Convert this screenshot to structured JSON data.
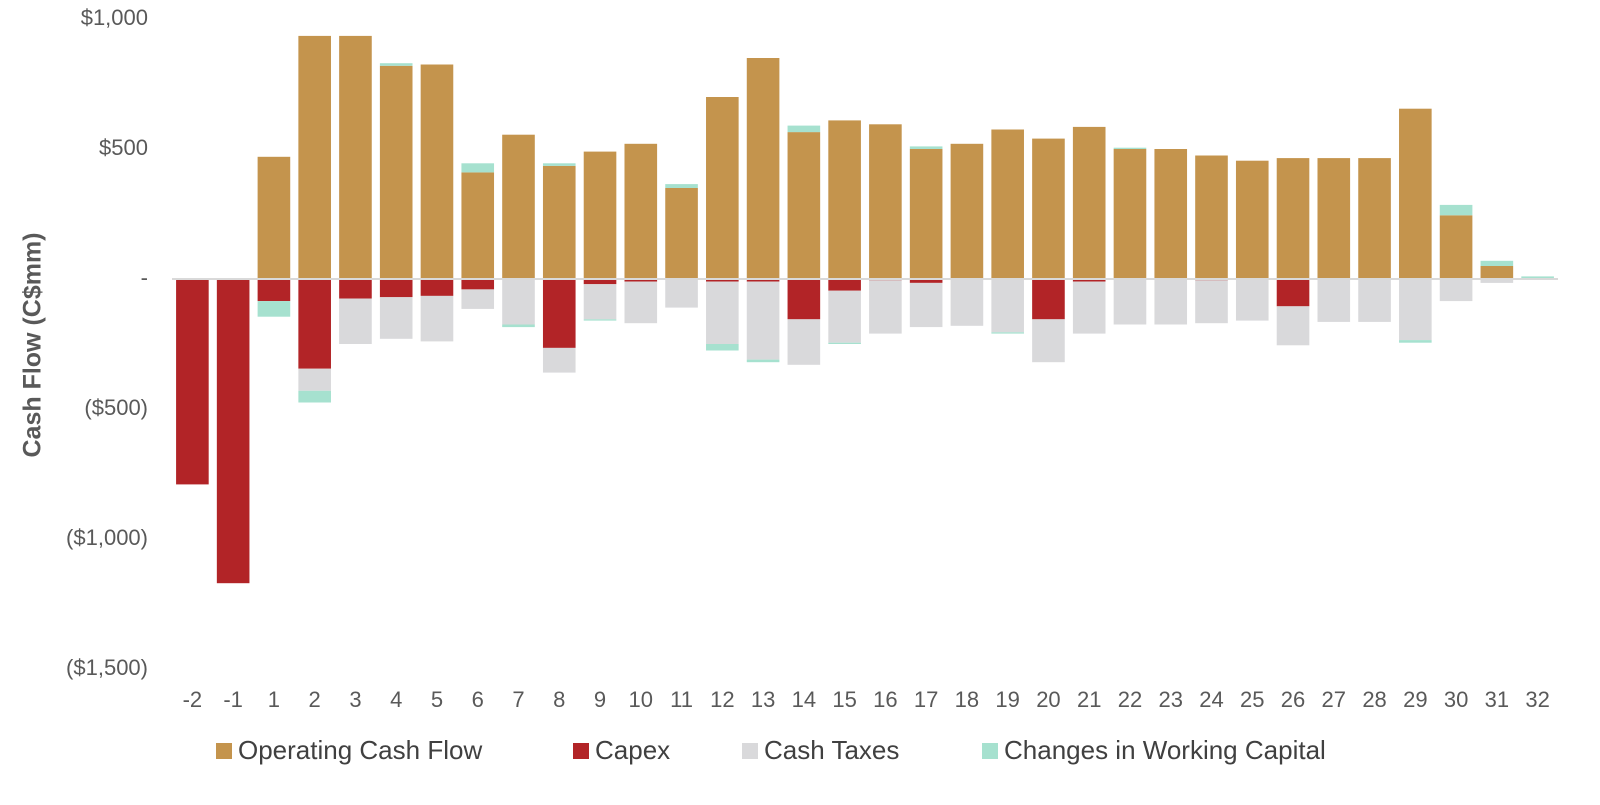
{
  "chart_data": {
    "type": "bar",
    "stacked": true,
    "title": "",
    "xlabel": "",
    "ylabel": "Cash Flow (C$mm)",
    "ylim": [
      -1500,
      1000
    ],
    "y_ticks": [
      {
        "value": 1000,
        "label": "$1,000"
      },
      {
        "value": 500,
        "label": "$500"
      },
      {
        "value": 0,
        "label": "-"
      },
      {
        "value": -500,
        "label": "($500)"
      },
      {
        "value": -1000,
        "label": "($1,000)"
      },
      {
        "value": -1500,
        "label": "($1,500)"
      }
    ],
    "categories": [
      "-2",
      "-1",
      "1",
      "2",
      "3",
      "4",
      "5",
      "6",
      "7",
      "8",
      "9",
      "10",
      "11",
      "12",
      "13",
      "14",
      "15",
      "16",
      "17",
      "18",
      "19",
      "20",
      "21",
      "22",
      "23",
      "24",
      "25",
      "26",
      "27",
      "28",
      "29",
      "30",
      "31",
      "32"
    ],
    "series": [
      {
        "name": "Operating Cash Flow",
        "color": "#C4944D",
        "values": [
          0,
          0,
          470,
          935,
          935,
          820,
          825,
          410,
          555,
          435,
          490,
          520,
          350,
          700,
          850,
          565,
          610,
          595,
          500,
          520,
          575,
          540,
          585,
          500,
          500,
          475,
          455,
          465,
          465,
          465,
          655,
          245,
          50,
          0
        ]
      },
      {
        "name": "Capex",
        "color": "#B22427",
        "values": [
          -790,
          -1170,
          -85,
          -345,
          -75,
          -70,
          -65,
          -40,
          0,
          -265,
          -20,
          -10,
          0,
          -10,
          -10,
          -155,
          -45,
          -5,
          -15,
          0,
          0,
          -155,
          -10,
          0,
          0,
          -5,
          0,
          -105,
          0,
          0,
          0,
          0,
          0,
          0
        ]
      },
      {
        "name": "Cash Taxes",
        "color": "#D9D9DB",
        "values": [
          0,
          0,
          0,
          -85,
          -175,
          -160,
          -175,
          -75,
          -175,
          -95,
          -135,
          -160,
          -110,
          -240,
          -300,
          -175,
          -200,
          -205,
          -170,
          -180,
          -205,
          -165,
          -200,
          -175,
          -175,
          -165,
          -160,
          -150,
          -165,
          -165,
          -235,
          -85,
          -15,
          0
        ]
      },
      {
        "name": "Changes in Working Capital",
        "color": "#A6E1CF",
        "values": [
          0,
          0,
          -60,
          -45,
          0,
          10,
          0,
          35,
          -10,
          10,
          -5,
          0,
          15,
          -25,
          -10,
          25,
          -5,
          0,
          10,
          0,
          -5,
          0,
          0,
          5,
          0,
          0,
          0,
          0,
          0,
          0,
          -10,
          40,
          20,
          10
        ]
      }
    ],
    "grid": false,
    "legend": {
      "position": "bottom"
    }
  }
}
